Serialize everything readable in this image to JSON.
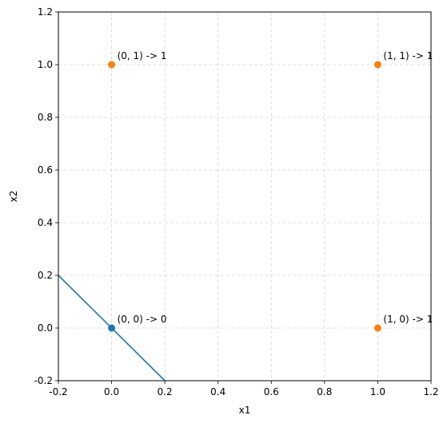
{
  "chart_data": {
    "type": "scatter",
    "xlabel": "x1",
    "ylabel": "x2",
    "xlim": [
      -0.2,
      1.2
    ],
    "ylim": [
      -0.2,
      1.2
    ],
    "xticks": [
      "-0.2",
      "0.0",
      "0.2",
      "0.4",
      "0.6",
      "0.8",
      "1.0",
      "1.2"
    ],
    "yticks": [
      "-0.2",
      "0.0",
      "0.2",
      "0.4",
      "0.6",
      "0.8",
      "1.0",
      "1.2"
    ],
    "grid": true,
    "points": [
      {
        "x": 0,
        "y": 0,
        "label": "(0, 0) -> 0",
        "color": "#1f77b4"
      },
      {
        "x": 0,
        "y": 1,
        "label": "(0, 1) -> 1",
        "color": "#ff7f0e"
      },
      {
        "x": 1,
        "y": 0,
        "label": "(1, 0) -> 1",
        "color": "#ff7f0e"
      },
      {
        "x": 1,
        "y": 1,
        "label": "(1, 1) -> 1",
        "color": "#ff7f0e"
      }
    ],
    "line": {
      "x": [
        -0.2,
        0.2
      ],
      "y": [
        0.2,
        -0.2
      ],
      "color": "#1f77b4"
    }
  }
}
